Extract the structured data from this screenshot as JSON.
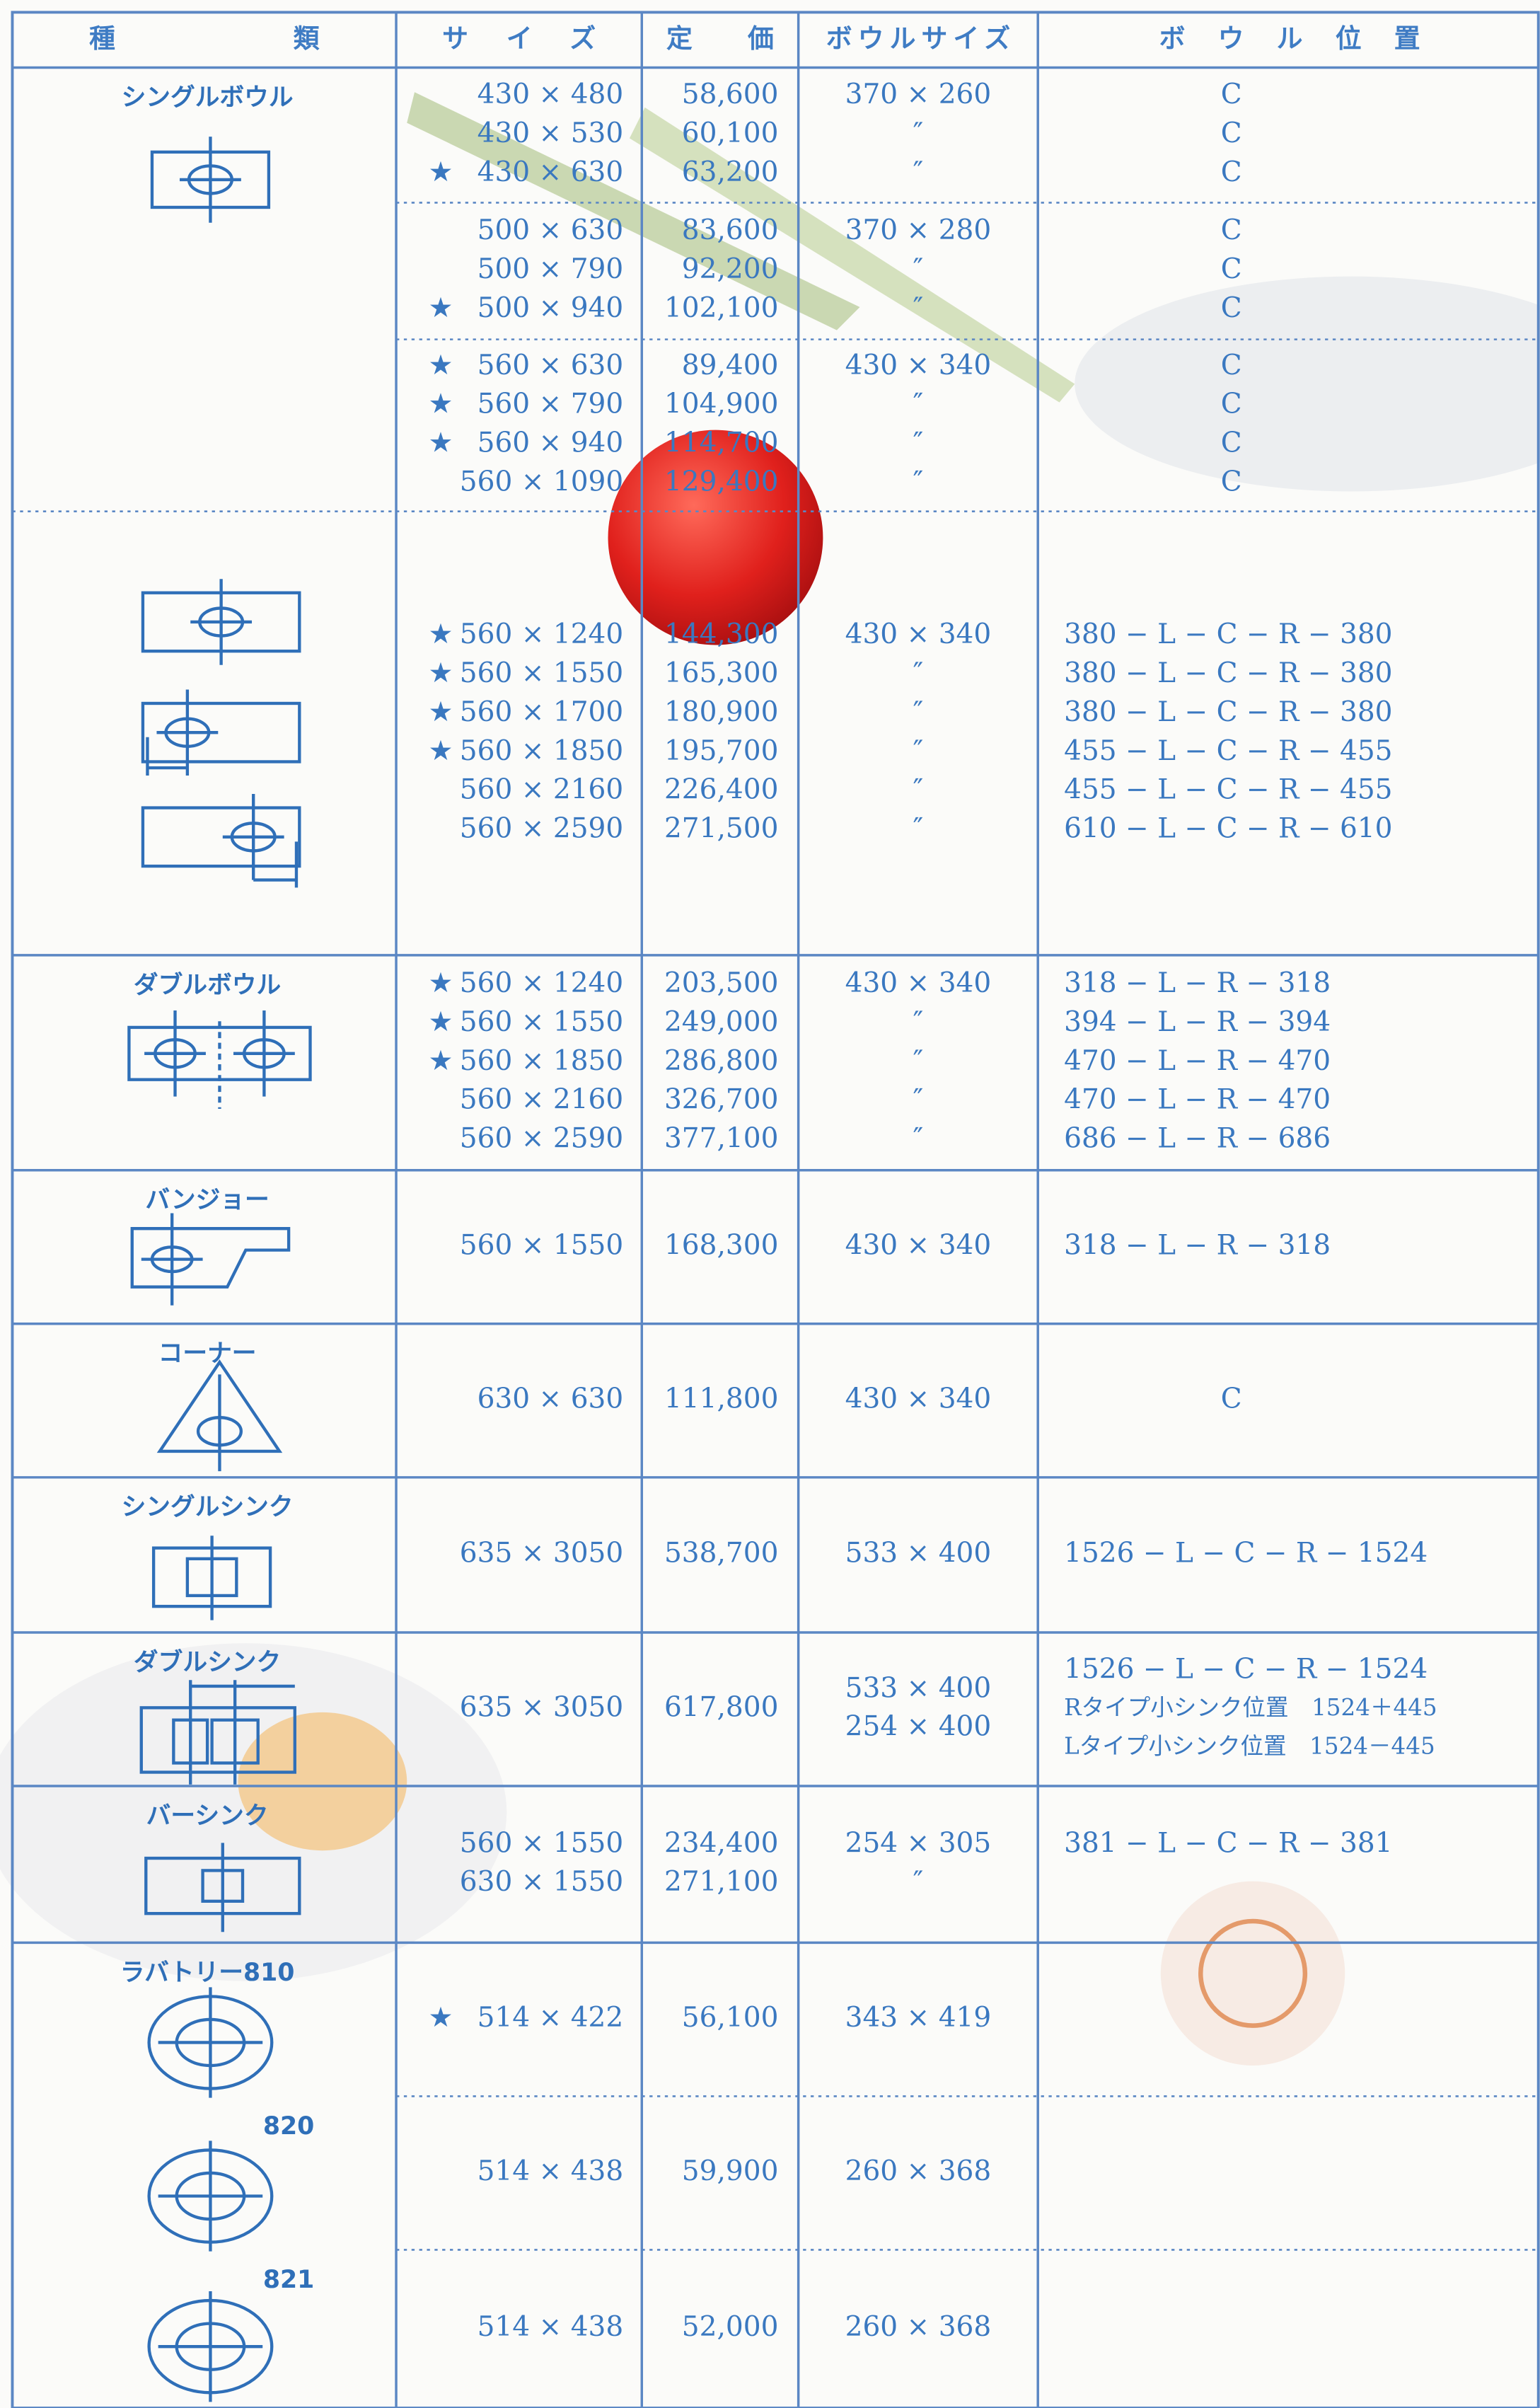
{
  "table": {
    "header": [
      "種類",
      "サイズ",
      "定価",
      "ボウルサイズ",
      "ボウル位置"
    ],
    "sections": [
      {
        "label": "シングルボウル",
        "groups": [
          [
            {
              "size": "430 × 480",
              "price": "58,600",
              "bowl": "370 × 260",
              "position": "C"
            },
            {
              "size": "430 × 530",
              "price": "60,100",
              "bowl": "″",
              "position": "C"
            },
            {
              "mark": "★",
              "size": "430 × 630",
              "price": "63,200",
              "bowl": "″",
              "position": "C"
            }
          ],
          [
            {
              "size": "500 × 630",
              "price": "83,600",
              "bowl": "370 × 280",
              "position": "C"
            },
            {
              "size": "500 × 790",
              "price": "92,200",
              "bowl": "″",
              "position": "C"
            },
            {
              "mark": "★",
              "size": "500 × 940",
              "price": "102,100",
              "bowl": "″",
              "position": "C"
            }
          ],
          [
            {
              "mark": "★",
              "size": "560 × 630",
              "price": "89,400",
              "bowl": "430 × 340",
              "position": "C"
            },
            {
              "mark": "★",
              "size": "560 × 790",
              "price": "104,900",
              "bowl": "″",
              "position": "C"
            },
            {
              "mark": "★",
              "size": "560 × 940",
              "price": "114,700",
              "bowl": "″",
              "position": "C"
            },
            {
              "size": "560 × 1090",
              "price": "129,400",
              "bowl": "″",
              "position": "C"
            }
          ]
        ]
      },
      {
        "groups": [
          [
            {
              "mark": "★",
              "size": "560 × 1240",
              "price": "144,300",
              "bowl": "430 × 340",
              "position": "380 − L − C − R − 380"
            },
            {
              "mark": "★",
              "size": "560 × 1550",
              "price": "165,300",
              "bowl": "″",
              "position": "380 − L − C − R − 380"
            },
            {
              "mark": "★",
              "size": "560 × 1700",
              "price": "180,900",
              "bowl": "″",
              "position": "380 − L − C − R − 380"
            },
            {
              "mark": "★",
              "size": "560 × 1850",
              "price": "195,700",
              "bowl": "″",
              "position": "455 − L − C − R − 455"
            },
            {
              "size": "560 × 2160",
              "price": "226,400",
              "bowl": "″",
              "position": "455 − L − C − R − 455"
            },
            {
              "size": "560 × 2590",
              "price": "271,500",
              "bowl": "″",
              "position": "610 − L − C − R − 610"
            }
          ]
        ]
      },
      {
        "label": "ダブルボウル",
        "groups": [
          [
            {
              "mark": "★",
              "size": "560 × 1240",
              "price": "203,500",
              "bowl": "430 × 340",
              "position": "318 − L − R − 318"
            },
            {
              "mark": "★",
              "size": "560 × 1550",
              "price": "249,000",
              "bowl": "″",
              "position": "394 − L − R − 394"
            },
            {
              "mark": "★",
              "size": "560 × 1850",
              "price": "286,800",
              "bowl": "″",
              "position": "470 − L − R − 470"
            },
            {
              "size": "560 × 2160",
              "price": "326,700",
              "bowl": "″",
              "position": "470 − L − R − 470"
            },
            {
              "size": "560 × 2590",
              "price": "377,100",
              "bowl": "″",
              "position": "686 − L − R − 686"
            }
          ]
        ]
      },
      {
        "label": "バンジョー",
        "groups": [
          [
            {
              "size": "560 × 1550",
              "price": "168,300",
              "bowl": "430 × 340",
              "position": "318 − L − R − 318"
            }
          ]
        ]
      },
      {
        "label": "コーナー",
        "groups": [
          [
            {
              "size": "630 × 630",
              "price": "111,800",
              "bowl": "430 × 340",
              "position": "C"
            }
          ]
        ]
      },
      {
        "label": "シングルシンク",
        "groups": [
          [
            {
              "size": "635 × 3050",
              "price": "538,700",
              "bowl": "533 × 400",
              "position": "1526 − L − C − R − 1524"
            }
          ]
        ]
      },
      {
        "label": "ダブルシンク",
        "groups": [
          [
            {
              "size": "635 × 3050",
              "price": "617,800",
              "bowl": [
                "533 × 400",
                "254 × 400"
              ],
              "position": [
                "1526 − L − C − R − 1524",
                "Rタイプ小シンク位置　1524＋445",
                "Lタイプ小シンク位置　1524－445"
              ]
            }
          ]
        ]
      },
      {
        "label": "バーシンク",
        "groups": [
          [
            {
              "size": "560 × 1550",
              "price": "234,400",
              "bowl": "254 × 305",
              "position": "381 − L − C − R − 381"
            },
            {
              "size": "630 × 1550",
              "price": "271,100",
              "bowl": "″"
            }
          ]
        ]
      },
      {
        "label": "ラバトリー810",
        "groups": [
          [
            {
              "mark": "★",
              "size": "514 × 422",
              "price": "56,100",
              "bowl": "343 × 419"
            }
          ]
        ]
      },
      {
        "label": "820",
        "groups": [
          [
            {
              "size": "514 × 438",
              "price": "59,900",
              "bowl": "260 × 368"
            }
          ]
        ]
      },
      {
        "label": "821",
        "groups": [
          [
            {
              "size": "514 × 438",
              "price": "52,000",
              "bowl": "260 × 368"
            }
          ]
        ]
      }
    ]
  }
}
